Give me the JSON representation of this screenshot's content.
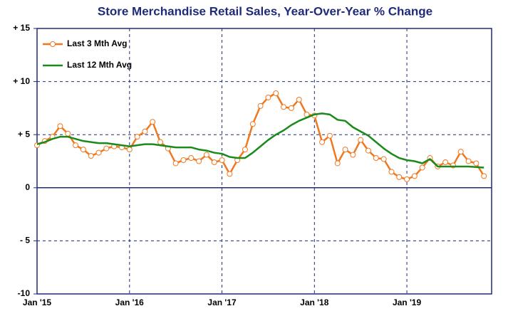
{
  "chart_data": {
    "type": "line",
    "title": "Store Merchandise Retail Sales, Year-Over-Year % Change",
    "categories": [
      "Jan '15",
      null,
      null,
      null,
      null,
      null,
      null,
      null,
      null,
      null,
      null,
      null,
      "Jan '16",
      null,
      null,
      null,
      null,
      null,
      null,
      null,
      null,
      null,
      null,
      null,
      "Jan '17",
      null,
      null,
      null,
      null,
      null,
      null,
      null,
      null,
      null,
      null,
      null,
      "Jan '18",
      null,
      null,
      null,
      null,
      null,
      null,
      null,
      null,
      null,
      null,
      null,
      "Jan '19",
      null,
      null,
      null,
      null,
      null,
      null,
      null,
      null,
      null,
      null
    ],
    "series": [
      {
        "name": "Last 3 Mth Avg",
        "color": "#f07820",
        "marker": true,
        "values": [
          4.0,
          4.4,
          4.8,
          5.8,
          5.1,
          4.0,
          3.6,
          3.0,
          3.3,
          3.7,
          3.9,
          3.8,
          3.6,
          4.8,
          5.3,
          6.2,
          4.3,
          3.7,
          2.3,
          2.6,
          2.8,
          2.5,
          3.1,
          2.4,
          2.6,
          1.3,
          2.6,
          3.6,
          6.0,
          7.7,
          8.5,
          8.9,
          7.6,
          7.5,
          8.3,
          6.9,
          6.8,
          4.3,
          4.9,
          2.3,
          3.6,
          3.1,
          4.5,
          3.5,
          2.8,
          2.7,
          1.5,
          1.0,
          0.8,
          1.1,
          1.9,
          2.8,
          2.0,
          2.4,
          2.1,
          3.4,
          2.5,
          2.3,
          1.1
        ]
      },
      {
        "name": "Last 12 Mth Avg",
        "color": "#1a8a1a",
        "marker": false,
        "values": [
          4.1,
          4.3,
          4.6,
          4.8,
          4.8,
          4.6,
          4.4,
          4.3,
          4.2,
          4.2,
          4.1,
          4.0,
          3.9,
          4.0,
          4.1,
          4.1,
          4.0,
          3.9,
          3.8,
          3.8,
          3.8,
          3.6,
          3.5,
          3.3,
          3.2,
          2.9,
          2.8,
          2.8,
          3.3,
          3.9,
          4.5,
          5.0,
          5.4,
          5.9,
          6.3,
          6.6,
          6.9,
          7.0,
          6.9,
          6.4,
          6.3,
          5.7,
          5.3,
          4.9,
          4.3,
          3.7,
          3.2,
          2.8,
          2.6,
          2.5,
          2.3,
          2.7,
          2.0,
          2.0,
          2.0,
          2.0,
          2.0,
          1.95,
          1.9
        ]
      }
    ],
    "ylim": [
      -10,
      15
    ],
    "yticks": [
      {
        "value": -10,
        "label": "-10"
      },
      {
        "value": -5,
        "label": "- 5"
      },
      0,
      {
        "value": 5,
        "label": "+ 5"
      },
      {
        "value": 10,
        "label": "+ 10"
      },
      {
        "value": 15,
        "label": "+ 15"
      }
    ],
    "grid": true,
    "legend": "upper-left"
  }
}
